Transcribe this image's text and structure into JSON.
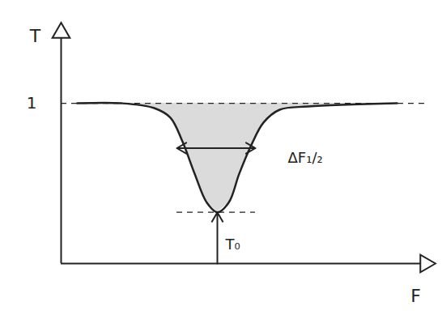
{
  "chart_data": {
    "type": "line",
    "x_label": "F",
    "y_label": "T",
    "x": [
      0.2,
      0.75,
      1.15,
      1.35,
      1.5,
      1.65,
      1.8,
      1.93,
      2.07,
      2.2,
      2.35,
      2.5,
      2.7,
      3.05,
      4.15
    ],
    "values": [
      1.0,
      1.0,
      0.97,
      0.91,
      0.76,
      0.56,
      0.38,
      0.32,
      0.38,
      0.56,
      0.74,
      0.88,
      0.96,
      0.98,
      1.0
    ],
    "xlim": [
      0,
      4.5
    ],
    "ylim": [
      0,
      1.44
    ],
    "xticks": [],
    "yticks": [
      1
    ],
    "tick_labels": "y",
    "grid": false,
    "color": "#222222",
    "annotations": [
      {
        "text": "ΔF₁/₂",
        "x": [
          1.43,
          2.4
        ],
        "y": 0.72
      },
      {
        "text": "T₀",
        "x": 1.93,
        "y": 0.32
      }
    ]
  }
}
